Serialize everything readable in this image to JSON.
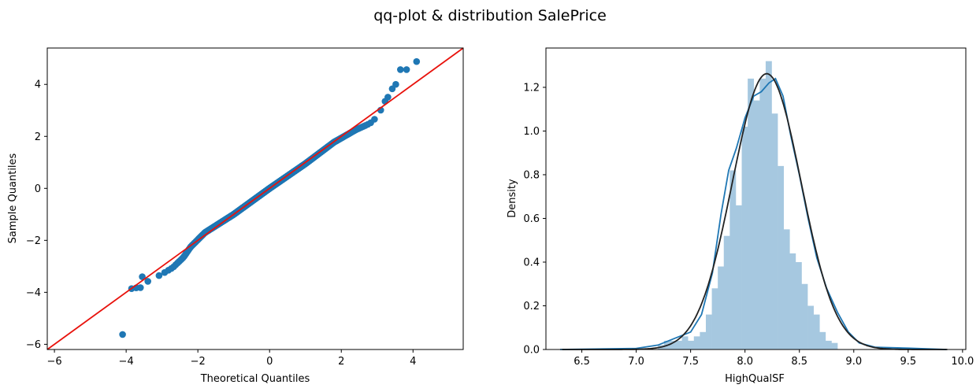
{
  "figure": {
    "title": "qq-plot & distribution SalePrice"
  },
  "chart_data": [
    {
      "type": "scatter",
      "subtitle": "qq-plot",
      "xlabel": "Theoretical Quantiles",
      "ylabel": "Sample Quantiles",
      "xlim": [
        -6.2,
        5.4
      ],
      "ylim": [
        -6.2,
        5.4
      ],
      "xticks": [
        -6,
        -4,
        -2,
        0,
        2,
        4
      ],
      "yticks": [
        -6,
        -4,
        -2,
        0,
        2,
        4
      ],
      "xtick_labels": [
        "−6",
        "−4",
        "−2",
        "0",
        "2",
        "4"
      ],
      "ytick_labels": [
        "−6",
        "−4",
        "−2",
        "0",
        "2",
        "4"
      ],
      "point_color": "#1f77b4",
      "reference_line": {
        "color": "#e8120c",
        "slope": 1,
        "intercept": 0
      },
      "extreme_points": [
        [
          -4.1,
          -5.62
        ],
        [
          -3.85,
          -3.86
        ],
        [
          -3.72,
          -3.83
        ],
        [
          -3.6,
          -3.82
        ],
        [
          -3.55,
          -3.4
        ],
        [
          3.1,
          3.01
        ],
        [
          3.22,
          3.35
        ],
        [
          3.3,
          3.51
        ],
        [
          3.42,
          3.83
        ],
        [
          3.52,
          4.0
        ],
        [
          3.65,
          4.57
        ],
        [
          3.82,
          4.57
        ],
        [
          4.1,
          4.88
        ]
      ],
      "bulk_deviation": [
        [
          -3.5,
          -0.15
        ],
        [
          -3.0,
          -0.3
        ],
        [
          -2.7,
          -0.35
        ],
        [
          -2.4,
          -0.25
        ],
        [
          -2.2,
          -0.05
        ],
        [
          -1.8,
          0.1
        ],
        [
          -1.0,
          0.0
        ],
        [
          0.0,
          0.0
        ],
        [
          1.0,
          -0.05
        ],
        [
          1.8,
          -0.02
        ],
        [
          2.4,
          -0.15
        ],
        [
          2.8,
          -0.3
        ],
        [
          3.2,
          -0.2
        ]
      ]
    },
    {
      "type": "histogram",
      "subtitle": "distribution",
      "xlabel": "HighQualSF",
      "ylabel": "Density",
      "xlim": [
        6.17,
        10.03
      ],
      "ylim": [
        0,
        1.38
      ],
      "xticks": [
        6.5,
        7.0,
        7.5,
        8.0,
        8.5,
        9.0,
        9.5,
        10.0
      ],
      "yticks": [
        0.0,
        0.2,
        0.4,
        0.6,
        0.8,
        1.0,
        1.2
      ],
      "xtick_labels": [
        "6.5",
        "7.0",
        "7.5",
        "8.0",
        "8.5",
        "9.0",
        "9.5",
        "10.0"
      ],
      "ytick_labels": [
        "0.0",
        "0.2",
        "0.4",
        "0.6",
        "0.8",
        "1.0",
        "1.2"
      ],
      "bar_color": "#a6c8e0",
      "kde_color": "#1f77b4",
      "normal_fit_color": "#222222",
      "bins": {
        "start": 7.2,
        "width": 0.055,
        "heights": [
          0.02,
          0.04,
          0.04,
          0.04,
          0.06,
          0.04,
          0.06,
          0.08,
          0.16,
          0.28,
          0.38,
          0.52,
          0.82,
          0.66,
          1.02,
          1.24,
          1.14,
          1.24,
          1.32,
          1.08,
          0.84,
          0.55,
          0.44,
          0.4,
          0.3,
          0.2,
          0.16,
          0.08,
          0.04,
          0.03
        ]
      },
      "normal_fit": {
        "mean": 8.2,
        "std": 0.316
      },
      "kde_points": [
        [
          6.3,
          0.0
        ],
        [
          7.0,
          0.005
        ],
        [
          7.2,
          0.02
        ],
        [
          7.35,
          0.05
        ],
        [
          7.5,
          0.08
        ],
        [
          7.6,
          0.16
        ],
        [
          7.7,
          0.35
        ],
        [
          7.78,
          0.62
        ],
        [
          7.85,
          0.82
        ],
        [
          7.92,
          0.92
        ],
        [
          8.0,
          1.06
        ],
        [
          8.08,
          1.16
        ],
        [
          8.15,
          1.18
        ],
        [
          8.22,
          1.22
        ],
        [
          8.28,
          1.24
        ],
        [
          8.35,
          1.16
        ],
        [
          8.42,
          0.98
        ],
        [
          8.5,
          0.8
        ],
        [
          8.58,
          0.6
        ],
        [
          8.66,
          0.42
        ],
        [
          8.75,
          0.28
        ],
        [
          8.85,
          0.17
        ],
        [
          8.95,
          0.08
        ],
        [
          9.05,
          0.03
        ],
        [
          9.2,
          0.01
        ],
        [
          9.5,
          0.006
        ],
        [
          9.85,
          0.0
        ]
      ]
    }
  ]
}
